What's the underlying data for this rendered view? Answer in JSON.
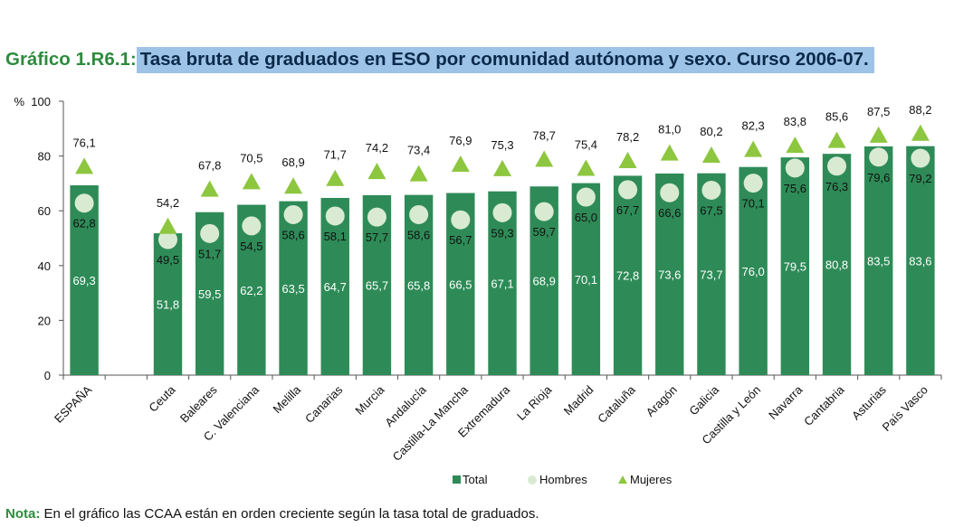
{
  "title": {
    "prefix": "Gráfico 1.R6.1",
    "colon": ":",
    "main": "Tasa bruta de graduados en ESO por comunidad autónoma y sexo. Curso 2006-07."
  },
  "note": {
    "label": "Nota:",
    "text": "En el gráfico las CCAA están en orden creciente según la tasa total de graduados."
  },
  "colors": {
    "total": "#2e8b57",
    "hombres": "#d9ead3",
    "mujeres": "#8dc63f",
    "axis": "#555555"
  },
  "chart_data": {
    "type": "bar",
    "ylabel": "%",
    "ylim": [
      0,
      100
    ],
    "yticks": [
      0,
      20,
      40,
      60,
      80,
      100
    ],
    "grid": false,
    "legend_position": "bottom",
    "categories": [
      "ESPAÑA",
      "Ceuta",
      "Baleares",
      "C. Valenciana",
      "Melilla",
      "Canarias",
      "Murcia",
      "Andalucía",
      "Castilla-La Mancha",
      "Extremadura",
      "La Rioja",
      "Madrid",
      "Cataluña",
      "Aragón",
      "Galicia",
      "Castilla y León",
      "Navarra",
      "Cantabria",
      "Asturias",
      "País Vasco"
    ],
    "series": [
      {
        "name": "Total",
        "kind": "bar",
        "values": [
          69.3,
          51.8,
          59.5,
          62.2,
          63.5,
          64.7,
          65.7,
          65.8,
          66.5,
          67.1,
          68.9,
          70.1,
          72.8,
          73.6,
          73.7,
          76.0,
          79.5,
          80.8,
          83.5,
          83.6
        ],
        "labels": [
          "69,3",
          "51,8",
          "59,5",
          "62,2",
          "63,5",
          "64,7",
          "65,7",
          "65,8",
          "66,5",
          "67,1",
          "68,9",
          "70,1",
          "72,8",
          "73,6",
          "73,7",
          "76,0",
          "79,5",
          "80,8",
          "83,5",
          "83,6"
        ]
      },
      {
        "name": "Hombres",
        "kind": "circle",
        "values": [
          62.8,
          49.5,
          51.7,
          54.5,
          58.6,
          58.1,
          57.7,
          58.6,
          56.7,
          59.3,
          59.7,
          65.0,
          67.7,
          66.6,
          67.5,
          70.1,
          75.6,
          76.3,
          79.6,
          79.2
        ],
        "labels": [
          "62,8",
          "49,5",
          "51,7",
          "54,5",
          "58,6",
          "58,1",
          "57,7",
          "58,6",
          "56,7",
          "59,3",
          "59,7",
          "65,0",
          "67,7",
          "66,6",
          "67,5",
          "70,1",
          "75,6",
          "76,3",
          "79,6",
          "79,2"
        ]
      },
      {
        "name": "Mujeres",
        "kind": "triangle",
        "values": [
          76.1,
          54.2,
          67.8,
          70.5,
          68.9,
          71.7,
          74.2,
          73.4,
          76.9,
          75.3,
          78.7,
          75.4,
          78.2,
          81.0,
          80.2,
          82.3,
          83.8,
          85.6,
          87.5,
          88.2
        ],
        "labels": [
          "76,1",
          "54,2",
          "67,8",
          "70,5",
          "68,9",
          "71,7",
          "74,2",
          "73,4",
          "76,9",
          "75,3",
          "78,7",
          "75,4",
          "78,2",
          "81,0",
          "80,2",
          "82,3",
          "83,8",
          "85,6",
          "87,5",
          "88,2"
        ]
      }
    ]
  }
}
